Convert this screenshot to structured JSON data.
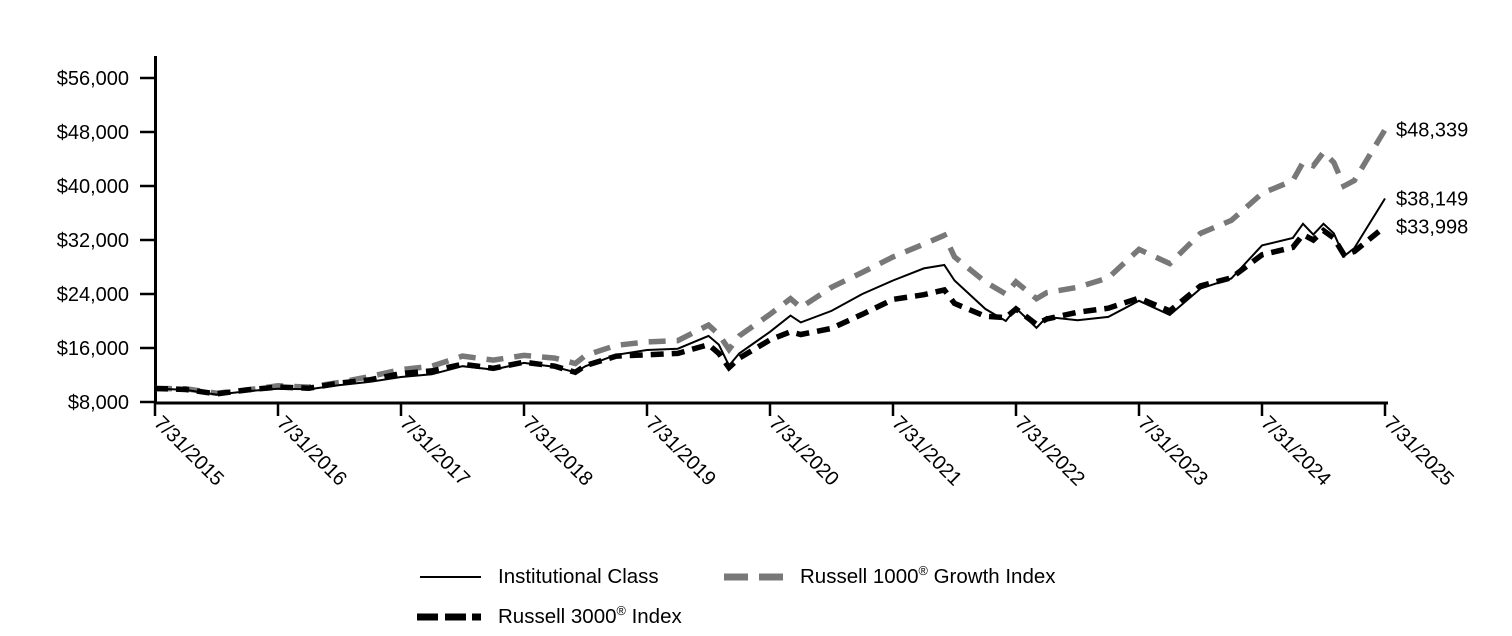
{
  "page": {
    "background": "#ffffff"
  },
  "chart_data": {
    "type": "line",
    "grid": false,
    "legend_position": "bottom",
    "x_label_rotation_deg": 45,
    "x_tick_labels": [
      "7/31/2015",
      "7/31/2016",
      "7/31/2017",
      "7/31/2018",
      "7/31/2019",
      "7/31/2020",
      "7/31/2021",
      "7/31/2022",
      "7/31/2023",
      "7/31/2024",
      "7/31/2025"
    ],
    "y_ticks": [
      {
        "value": 8000,
        "label": "$8,000"
      },
      {
        "value": 16000,
        "label": "$16,000"
      },
      {
        "value": 24000,
        "label": "$24,000"
      },
      {
        "value": 32000,
        "label": "$32,000"
      },
      {
        "value": 40000,
        "label": "$40,000"
      },
      {
        "value": 48000,
        "label": "$48,000"
      },
      {
        "value": 56000,
        "label": "$56,000"
      }
    ],
    "ylim": [
      8000,
      57500
    ],
    "x_range": [
      "7/31/2015",
      "7/31/2025"
    ],
    "x": [
      "7/31/2015",
      "10/31/2015",
      "1/31/2016",
      "4/30/2016",
      "7/31/2016",
      "10/31/2016",
      "1/31/2017",
      "4/30/2017",
      "7/31/2017",
      "10/31/2017",
      "1/31/2018",
      "4/30/2018",
      "7/31/2018",
      "10/31/2018",
      "12/31/2018",
      "1/31/2019",
      "4/30/2019",
      "7/31/2019",
      "10/31/2019",
      "1/31/2020",
      "2/29/2020",
      "3/31/2020",
      "4/30/2020",
      "7/31/2020",
      "9/30/2020",
      "10/31/2020",
      "1/31/2021",
      "4/30/2021",
      "7/31/2021",
      "10/31/2021",
      "12/31/2021",
      "1/31/2022",
      "4/30/2022",
      "6/30/2022",
      "7/31/2022",
      "9/30/2022",
      "10/31/2022",
      "1/31/2023",
      "4/30/2023",
      "7/31/2023",
      "10/31/2023",
      "1/31/2024",
      "4/30/2024",
      "7/31/2024",
      "10/31/2024",
      "11/30/2024",
      "12/31/2024",
      "1/31/2025",
      "2/28/2025",
      "3/31/2025",
      "4/30/2025",
      "7/31/2025"
    ],
    "series": [
      {
        "name": "Institutional Class",
        "color": "#000000",
        "line_style": "solid",
        "line_width": 2,
        "end_label": "$38,149",
        "final_value": 38149,
        "values": [
          10000,
          9800,
          9100,
          9600,
          9950,
          9900,
          10500,
          11000,
          11700,
          12100,
          13300,
          12800,
          13800,
          13200,
          12400,
          13300,
          15000,
          15700,
          15900,
          17800,
          16500,
          13400,
          15200,
          18400,
          20800,
          19800,
          21500,
          24000,
          26000,
          27800,
          28300,
          26000,
          21800,
          20000,
          21900,
          19000,
          20600,
          20100,
          20600,
          23000,
          20900,
          24800,
          26300,
          31200,
          32300,
          34400,
          32800,
          34400,
          33000,
          29600,
          30800,
          38149
        ]
      },
      {
        "name": "Russell 1000® Growth Index",
        "color": "#787878",
        "line_style": "dashed",
        "line_width": 5.5,
        "end_label": "$48,339",
        "final_value": 48339,
        "values": [
          10000,
          9950,
          9300,
          9800,
          10400,
          10200,
          10900,
          11800,
          12800,
          13300,
          14800,
          14200,
          14900,
          14500,
          13700,
          14900,
          16400,
          16900,
          17100,
          19400,
          18000,
          15800,
          17800,
          21000,
          23300,
          22000,
          25000,
          27200,
          29500,
          31400,
          32700,
          29500,
          25800,
          24000,
          25800,
          23300,
          24200,
          25000,
          26400,
          30600,
          28500,
          33000,
          34900,
          38900,
          40800,
          43500,
          43000,
          45000,
          43500,
          40000,
          40800,
          48339
        ]
      },
      {
        "name": "Russell 3000® Index",
        "color": "#000000",
        "line_style": "dashed",
        "line_width": 5.5,
        "end_label": "$33,998",
        "final_value": 33998,
        "values": [
          10000,
          9850,
          9200,
          9800,
          10200,
          10050,
          10800,
          11300,
          12200,
          12600,
          13600,
          13000,
          13900,
          13300,
          12400,
          13400,
          14800,
          15000,
          15200,
          16500,
          15200,
          13100,
          14500,
          17200,
          18400,
          18000,
          18900,
          21000,
          23200,
          23900,
          24600,
          22600,
          20700,
          20500,
          21800,
          19500,
          20300,
          21300,
          21900,
          23400,
          21500,
          25200,
          26400,
          29800,
          30900,
          32800,
          32000,
          33400,
          32300,
          29800,
          30300,
          33998
        ]
      }
    ],
    "legend": {
      "row1": [
        "Institutional Class",
        "Russell 1000® Growth Index"
      ],
      "row2": [
        "Russell 3000® Index"
      ]
    }
  }
}
